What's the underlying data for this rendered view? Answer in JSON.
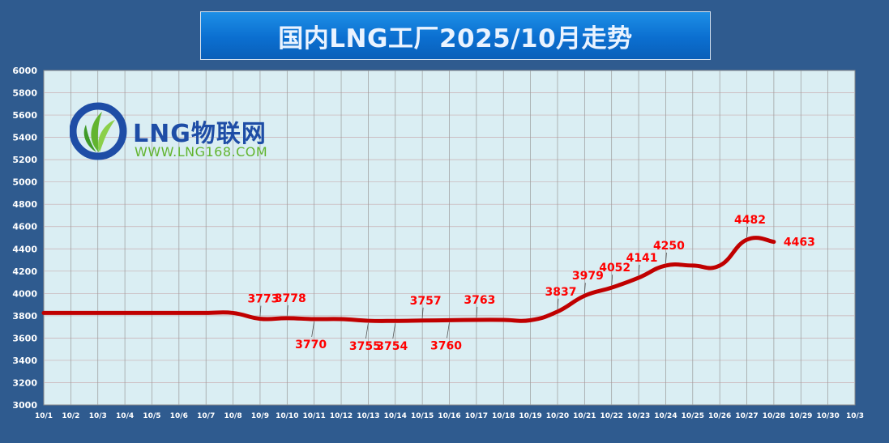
{
  "chart_data": {
    "type": "line",
    "title": "国内LNG工厂2025/10月走势",
    "xlabel": "",
    "ylabel": "",
    "categories": [
      "10/1",
      "10/2",
      "10/3",
      "10/4",
      "10/5",
      "10/6",
      "10/7",
      "10/8",
      "10/9",
      "10/10",
      "10/11",
      "10/12",
      "10/13",
      "10/14",
      "10/15",
      "10/16",
      "10/17",
      "10/18",
      "10/19",
      "10/20",
      "10/21",
      "10/22",
      "10/23",
      "10/24",
      "10/25",
      "10/26",
      "10/27",
      "10/28",
      "10/29",
      "10/30",
      "10/3"
    ],
    "ylim": [
      3000,
      6000
    ],
    "yticks": [
      "3000",
      "3200",
      "3400",
      "3600",
      "3800",
      "4000",
      "4200",
      "4400",
      "4600",
      "4800",
      "5000",
      "5200",
      "5400",
      "5600",
      "5800",
      "6000"
    ],
    "grid": true,
    "series": [
      {
        "color": "#c00000",
        "values": [
          3825,
          3825,
          3825,
          3825,
          3825,
          3825,
          3825,
          3825,
          3773,
          3778,
          3770,
          3770,
          3755,
          3754,
          3757,
          3760,
          3763,
          3763,
          3760,
          3837,
          3979,
          4052,
          4141,
          4250,
          4250,
          4250,
          4482,
          4463,
          null,
          null,
          null
        ]
      }
    ],
    "data_labels": [
      {
        "x": "10/9",
        "value": "3773",
        "pos": "above"
      },
      {
        "x": "10/10",
        "value": "3778",
        "pos": "above"
      },
      {
        "x": "10/11",
        "value": "3770",
        "pos": "below"
      },
      {
        "x": "10/13",
        "value": "3755",
        "pos": "below"
      },
      {
        "x": "10/14",
        "value": "3754",
        "pos": "below"
      },
      {
        "x": "10/15",
        "value": "3757",
        "pos": "above"
      },
      {
        "x": "10/16",
        "value": "3760",
        "pos": "below"
      },
      {
        "x": "10/17",
        "value": "3763",
        "pos": "above"
      },
      {
        "x": "10/20",
        "value": "3837",
        "pos": "above"
      },
      {
        "x": "10/21",
        "value": "3979",
        "pos": "above"
      },
      {
        "x": "10/22",
        "value": "4052",
        "pos": "above"
      },
      {
        "x": "10/23",
        "value": "4141",
        "pos": "above"
      },
      {
        "x": "10/24",
        "value": "4250",
        "pos": "above"
      },
      {
        "x": "10/27",
        "value": "4482",
        "pos": "above"
      },
      {
        "x": "10/28",
        "value": "4463",
        "pos": "right"
      }
    ],
    "colors": {
      "background": "#2f5b8f",
      "plot_area": "#daeef3",
      "line": "#c00000",
      "label": "#ff0000",
      "grid": "#a8a8a8"
    }
  },
  "logo": {
    "name": "LNG物联网",
    "url": "WWW.LNG168.COM"
  }
}
